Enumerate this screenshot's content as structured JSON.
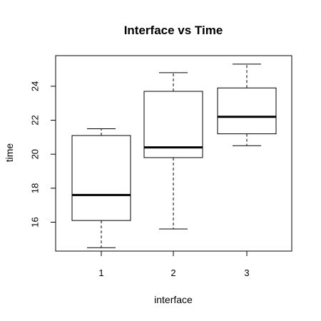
{
  "chart_data": {
    "type": "boxplot",
    "title": "Interface vs Time",
    "xlabel": "interface",
    "ylabel": "time",
    "categories": [
      "1",
      "2",
      "3"
    ],
    "boxes": [
      {
        "category": "1",
        "min": 14.5,
        "q1": 16.1,
        "median": 17.6,
        "q3": 21.1,
        "max": 21.5
      },
      {
        "category": "2",
        "min": 15.6,
        "q1": 19.8,
        "median": 20.4,
        "q3": 23.7,
        "max": 24.8
      },
      {
        "category": "3",
        "min": 20.5,
        "q1": 21.2,
        "median": 22.2,
        "q3": 23.9,
        "max": 25.3
      }
    ],
    "yticks": [
      16,
      18,
      20,
      22,
      24
    ],
    "ylim": [
      14.3,
      25.8
    ],
    "grid": false,
    "legend": "none"
  }
}
